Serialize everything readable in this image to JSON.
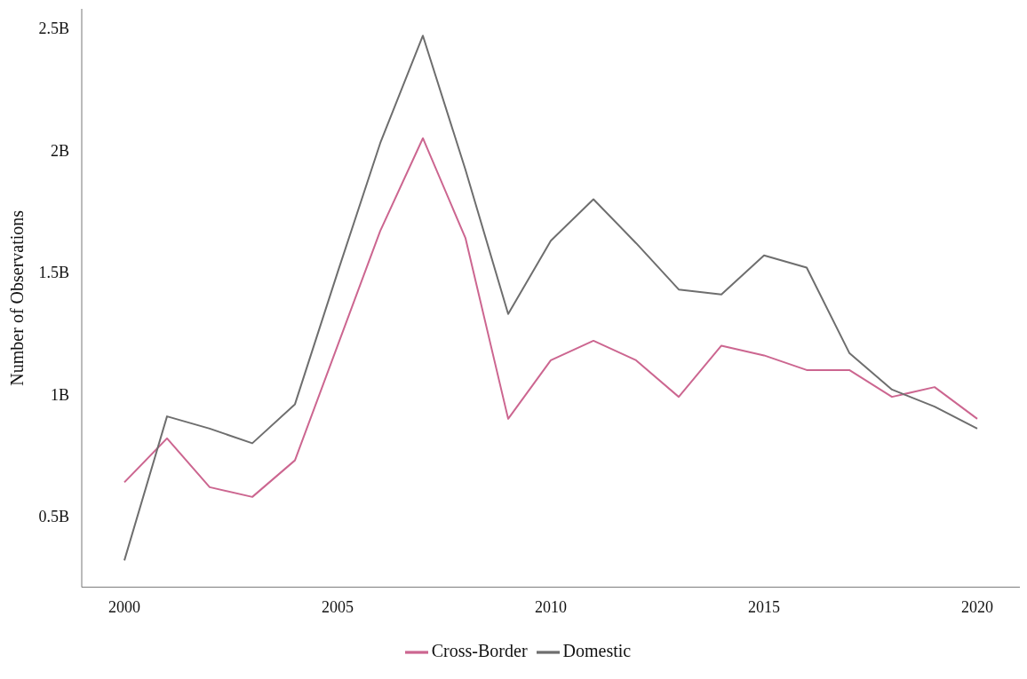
{
  "chart_data": {
    "type": "line",
    "ylabel": "Number of Observations",
    "x": [
      2000,
      2001,
      2002,
      2003,
      2004,
      2005,
      2006,
      2007,
      2008,
      2009,
      2010,
      2011,
      2012,
      2013,
      2014,
      2015,
      2016,
      2017,
      2018,
      2019,
      2020
    ],
    "series": [
      {
        "name": "Cross-Border",
        "color": "#cc6690",
        "values": [
          0.64,
          0.82,
          0.62,
          0.58,
          0.73,
          1.2,
          1.67,
          2.05,
          1.64,
          0.9,
          1.14,
          1.22,
          1.14,
          0.99,
          1.2,
          1.16,
          1.1,
          1.1,
          0.99,
          1.03,
          0.9
        ]
      },
      {
        "name": "Domestic",
        "color": "#6e6e6e",
        "values": [
          0.32,
          0.91,
          0.86,
          0.8,
          0.96,
          1.5,
          2.03,
          2.47,
          1.92,
          1.33,
          1.63,
          1.8,
          1.62,
          1.43,
          1.41,
          1.57,
          1.52,
          1.17,
          1.02,
          0.95,
          0.86
        ]
      }
    ],
    "xlim": [
      1999,
      2021
    ],
    "xticks": [
      2000,
      2005,
      2010,
      2015,
      2020
    ],
    "ylim": [
      0.21,
      2.58
    ],
    "yticks": [
      {
        "value": 0.5,
        "label": "0.5B"
      },
      {
        "value": 1,
        "label": "1B"
      },
      {
        "value": 1.5,
        "label": "1.5B"
      },
      {
        "value": 2,
        "label": "2B"
      },
      {
        "value": 2.5,
        "label": "2.5B"
      }
    ],
    "grid": false,
    "legend": "bottom",
    "marker": "none",
    "line_style": "solid"
  }
}
